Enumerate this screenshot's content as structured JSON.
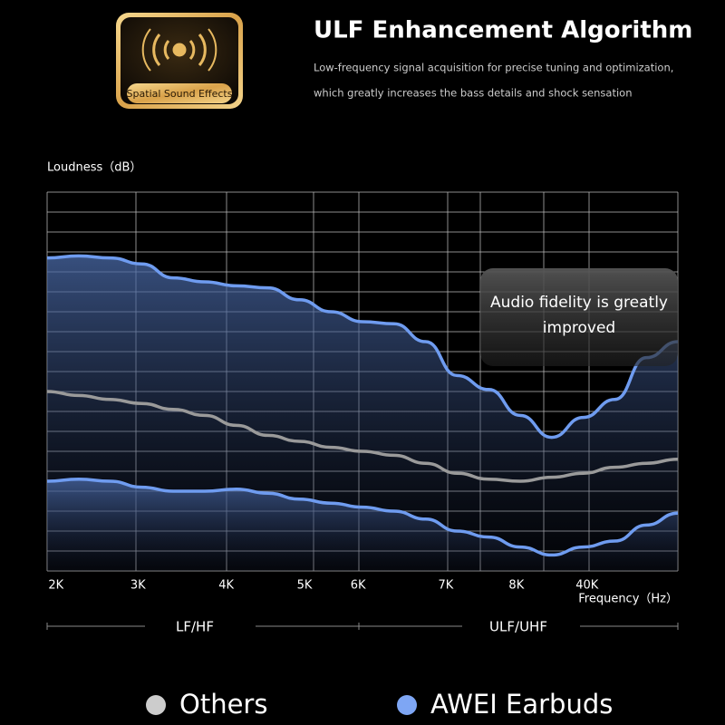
{
  "badge": "Spatial Sound Effects",
  "chart_data": {
    "type": "line",
    "title": "ULF Enhancement Algorithm",
    "subtitle": [
      "Low-frequency signal acquisition for precise tuning and optimization,",
      "which greatly increases the bass details and shock sensation"
    ],
    "y_label": "Loudness（dB）",
    "x_label": "Frequency（Hz）",
    "annotation": "Audio fidelity is greatly improved",
    "bands": [
      "LF/HF",
      "ULF/UHF"
    ],
    "x": [
      0,
      5,
      10,
      15,
      20,
      25,
      30,
      35,
      40,
      45,
      50,
      55,
      60,
      65,
      70,
      75,
      80,
      85,
      90,
      95,
      100
    ],
    "xlim": [
      0,
      100
    ],
    "xticks": [
      {
        "value": 1.4,
        "label": "2K"
      },
      {
        "value": 14.4,
        "label": "3K"
      },
      {
        "value": 28.4,
        "label": "4K"
      },
      {
        "value": 40.8,
        "label": "5K"
      },
      {
        "value": 49.3,
        "label": "6K"
      },
      {
        "value": 63.2,
        "label": "7K"
      },
      {
        "value": 74.4,
        "label": "8K"
      },
      {
        "value": 85.6,
        "label": "40K"
      }
    ],
    "ylim": [
      0,
      19
    ],
    "series": [
      {
        "name": "AWEI Earbuds",
        "color": "#6f9cf0",
        "values": [
          15.7,
          15.8,
          15.7,
          15.4,
          14.7,
          14.5,
          14.3,
          14.2,
          13.6,
          13.0,
          12.5,
          12.4,
          11.5,
          9.8,
          9.1,
          7.8,
          6.7,
          7.7,
          8.6,
          10.7,
          11.5
        ]
      },
      {
        "name": "Others",
        "color": "#9a9a9a",
        "values": [
          9.0,
          8.8,
          8.6,
          8.4,
          8.1,
          7.8,
          7.3,
          6.8,
          6.5,
          6.2,
          6.0,
          5.8,
          5.4,
          4.9,
          4.6,
          4.5,
          4.7,
          4.9,
          5.2,
          5.4,
          5.6
        ]
      },
      {
        "color": "#6f9cf0",
        "values": [
          4.5,
          4.6,
          4.5,
          4.2,
          4.0,
          4.0,
          4.1,
          3.9,
          3.6,
          3.4,
          3.2,
          3.0,
          2.6,
          2.0,
          1.7,
          1.2,
          0.8,
          1.2,
          1.5,
          2.3,
          2.9
        ]
      }
    ]
  }
}
